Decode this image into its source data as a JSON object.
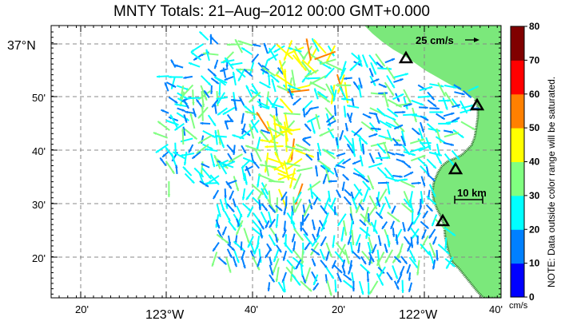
{
  "title": "MNTY Totals: 21–Aug–2012 00:00 GMT+0.000",
  "scale_vector_label": "25 cm/s",
  "scale_bar_label": "10 km",
  "lat_labels": [
    "37°N",
    "50'",
    "40'",
    "30'",
    "20'"
  ],
  "lon_labels": [
    "20'",
    "123°W",
    "40'",
    "20'",
    "122°W",
    "40'"
  ],
  "colorbar": {
    "ticks": [
      "80",
      "70",
      "60",
      "50",
      "40",
      "30",
      "20",
      "10",
      "0"
    ],
    "unit": "cm/s",
    "note": "NOTE: Data outside color range will be saturated.",
    "colors": [
      "#0000ff",
      "#0080ff",
      "#00ffff",
      "#80ff80",
      "#ffff00",
      "#ff8000",
      "#ff0000",
      "#800000"
    ],
    "min": 0,
    "max": 80
  },
  "colors": {
    "land": "#7be87b",
    "coast_shade": "#2f6b2f",
    "grid": "#888888"
  },
  "icons": {
    "station": "triangle-station-icon",
    "arrow": "current-vector-icon"
  }
}
